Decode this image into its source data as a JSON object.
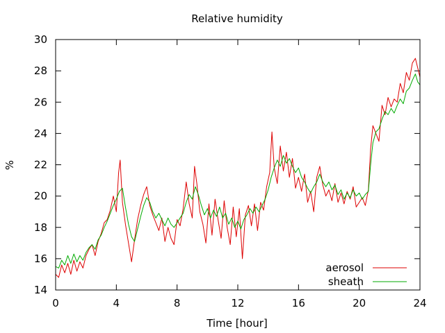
{
  "chart_data": {
    "type": "line",
    "title": "Relative humidity",
    "xlabel": "Time [hour]",
    "ylabel": "%",
    "xlim": [
      0,
      24
    ],
    "ylim": [
      14,
      30
    ],
    "x_ticks": [
      0,
      4,
      8,
      12,
      16,
      20,
      24
    ],
    "y_ticks": [
      14,
      16,
      18,
      20,
      22,
      24,
      26,
      28,
      30
    ],
    "grid": false,
    "legend_position": "bottom-right",
    "series": [
      {
        "name": "aerosol",
        "color": "#dd0000",
        "points": [
          [
            0.0,
            15.0
          ],
          [
            0.2,
            14.8
          ],
          [
            0.4,
            15.6
          ],
          [
            0.6,
            15.1
          ],
          [
            0.8,
            15.7
          ],
          [
            1.0,
            15.0
          ],
          [
            1.2,
            15.9
          ],
          [
            1.4,
            15.2
          ],
          [
            1.6,
            15.8
          ],
          [
            1.8,
            15.4
          ],
          [
            2.0,
            16.2
          ],
          [
            2.2,
            16.6
          ],
          [
            2.4,
            16.9
          ],
          [
            2.6,
            16.2
          ],
          [
            2.8,
            17.1
          ],
          [
            3.0,
            17.6
          ],
          [
            3.2,
            18.3
          ],
          [
            3.4,
            18.5
          ],
          [
            3.6,
            19.1
          ],
          [
            3.8,
            20.0
          ],
          [
            4.0,
            19.0
          ],
          [
            4.15,
            21.5
          ],
          [
            4.25,
            22.3
          ],
          [
            4.4,
            19.6
          ],
          [
            4.6,
            18.2
          ],
          [
            4.8,
            17.0
          ],
          [
            5.0,
            15.8
          ],
          [
            5.2,
            17.2
          ],
          [
            5.4,
            18.5
          ],
          [
            5.6,
            19.4
          ],
          [
            5.8,
            20.1
          ],
          [
            6.0,
            20.6
          ],
          [
            6.2,
            19.4
          ],
          [
            6.4,
            18.8
          ],
          [
            6.6,
            18.3
          ],
          [
            6.8,
            17.8
          ],
          [
            7.0,
            18.6
          ],
          [
            7.2,
            17.1
          ],
          [
            7.4,
            18.0
          ],
          [
            7.6,
            17.3
          ],
          [
            7.8,
            16.9
          ],
          [
            8.0,
            18.5
          ],
          [
            8.2,
            18.1
          ],
          [
            8.4,
            19.2
          ],
          [
            8.6,
            20.9
          ],
          [
            8.8,
            19.5
          ],
          [
            9.0,
            18.6
          ],
          [
            9.15,
            21.9
          ],
          [
            9.3,
            20.8
          ],
          [
            9.5,
            19.0
          ],
          [
            9.7,
            18.2
          ],
          [
            9.9,
            17.0
          ],
          [
            10.1,
            19.5
          ],
          [
            10.3,
            17.5
          ],
          [
            10.5,
            19.8
          ],
          [
            10.7,
            18.5
          ],
          [
            10.9,
            17.3
          ],
          [
            11.1,
            19.7
          ],
          [
            11.3,
            18.0
          ],
          [
            11.5,
            16.9
          ],
          [
            11.7,
            19.3
          ],
          [
            11.9,
            17.4
          ],
          [
            12.1,
            19.2
          ],
          [
            12.3,
            16.0
          ],
          [
            12.5,
            18.8
          ],
          [
            12.7,
            19.4
          ],
          [
            12.9,
            18.1
          ],
          [
            13.1,
            19.5
          ],
          [
            13.3,
            17.8
          ],
          [
            13.5,
            19.6
          ],
          [
            13.7,
            19.1
          ],
          [
            13.9,
            20.6
          ],
          [
            14.1,
            21.5
          ],
          [
            14.25,
            24.1
          ],
          [
            14.4,
            21.8
          ],
          [
            14.6,
            20.8
          ],
          [
            14.8,
            23.2
          ],
          [
            15.0,
            21.6
          ],
          [
            15.2,
            22.8
          ],
          [
            15.4,
            21.2
          ],
          [
            15.6,
            22.4
          ],
          [
            15.8,
            20.5
          ],
          [
            16.0,
            21.2
          ],
          [
            16.2,
            20.3
          ],
          [
            16.4,
            21.4
          ],
          [
            16.6,
            19.6
          ],
          [
            16.8,
            20.3
          ],
          [
            17.0,
            19.0
          ],
          [
            17.2,
            21.2
          ],
          [
            17.4,
            21.9
          ],
          [
            17.6,
            20.7
          ],
          [
            17.8,
            20.0
          ],
          [
            18.0,
            20.4
          ],
          [
            18.2,
            19.7
          ],
          [
            18.4,
            20.8
          ],
          [
            18.6,
            19.6
          ],
          [
            18.8,
            20.2
          ],
          [
            19.0,
            19.5
          ],
          [
            19.2,
            20.3
          ],
          [
            19.4,
            19.8
          ],
          [
            19.6,
            20.6
          ],
          [
            19.8,
            19.3
          ],
          [
            20.0,
            19.6
          ],
          [
            20.2,
            19.9
          ],
          [
            20.4,
            19.4
          ],
          [
            20.6,
            20.4
          ],
          [
            20.75,
            23.0
          ],
          [
            20.9,
            24.5
          ],
          [
            21.1,
            24.0
          ],
          [
            21.3,
            23.5
          ],
          [
            21.5,
            25.8
          ],
          [
            21.7,
            25.2
          ],
          [
            21.9,
            26.3
          ],
          [
            22.1,
            25.7
          ],
          [
            22.3,
            26.2
          ],
          [
            22.5,
            26.0
          ],
          [
            22.7,
            27.2
          ],
          [
            22.9,
            26.6
          ],
          [
            23.1,
            27.9
          ],
          [
            23.3,
            27.4
          ],
          [
            23.5,
            28.5
          ],
          [
            23.7,
            28.8
          ],
          [
            23.85,
            28.2
          ],
          [
            24.0,
            27.6
          ]
        ]
      },
      {
        "name": "sheath",
        "color": "#00aa00",
        "points": [
          [
            0.0,
            15.5
          ],
          [
            0.2,
            15.4
          ],
          [
            0.4,
            15.9
          ],
          [
            0.6,
            15.6
          ],
          [
            0.8,
            16.2
          ],
          [
            1.0,
            15.7
          ],
          [
            1.2,
            16.3
          ],
          [
            1.4,
            15.8
          ],
          [
            1.6,
            16.2
          ],
          [
            1.8,
            15.9
          ],
          [
            2.0,
            16.4
          ],
          [
            2.2,
            16.7
          ],
          [
            2.4,
            16.9
          ],
          [
            2.6,
            16.6
          ],
          [
            2.8,
            17.2
          ],
          [
            3.0,
            17.5
          ],
          [
            3.2,
            18.0
          ],
          [
            3.4,
            18.4
          ],
          [
            3.6,
            18.9
          ],
          [
            3.8,
            19.4
          ],
          [
            4.0,
            19.8
          ],
          [
            4.2,
            20.3
          ],
          [
            4.4,
            20.5
          ],
          [
            4.6,
            19.3
          ],
          [
            4.8,
            18.2
          ],
          [
            5.0,
            17.4
          ],
          [
            5.2,
            17.1
          ],
          [
            5.4,
            17.9
          ],
          [
            5.6,
            18.7
          ],
          [
            5.8,
            19.4
          ],
          [
            6.0,
            19.9
          ],
          [
            6.2,
            19.6
          ],
          [
            6.4,
            19.0
          ],
          [
            6.6,
            18.6
          ],
          [
            6.8,
            18.9
          ],
          [
            7.0,
            18.5
          ],
          [
            7.2,
            18.1
          ],
          [
            7.4,
            18.6
          ],
          [
            7.6,
            18.2
          ],
          [
            7.8,
            18.0
          ],
          [
            8.0,
            18.3
          ],
          [
            8.2,
            18.6
          ],
          [
            8.4,
            18.9
          ],
          [
            8.6,
            19.6
          ],
          [
            8.8,
            20.1
          ],
          [
            9.0,
            19.8
          ],
          [
            9.2,
            20.6
          ],
          [
            9.4,
            20.1
          ],
          [
            9.6,
            19.4
          ],
          [
            9.8,
            18.8
          ],
          [
            10.0,
            19.2
          ],
          [
            10.2,
            18.6
          ],
          [
            10.4,
            19.1
          ],
          [
            10.6,
            18.7
          ],
          [
            10.8,
            19.3
          ],
          [
            11.0,
            18.6
          ],
          [
            11.2,
            18.9
          ],
          [
            11.4,
            18.2
          ],
          [
            11.6,
            18.6
          ],
          [
            11.8,
            18.0
          ],
          [
            12.0,
            18.4
          ],
          [
            12.2,
            17.9
          ],
          [
            12.4,
            18.5
          ],
          [
            12.6,
            18.8
          ],
          [
            12.8,
            19.2
          ],
          [
            13.0,
            18.9
          ],
          [
            13.2,
            19.3
          ],
          [
            13.4,
            19.0
          ],
          [
            13.6,
            19.4
          ],
          [
            13.8,
            19.8
          ],
          [
            14.0,
            20.4
          ],
          [
            14.2,
            21.2
          ],
          [
            14.4,
            21.8
          ],
          [
            14.6,
            22.3
          ],
          [
            14.8,
            21.9
          ],
          [
            15.0,
            22.6
          ],
          [
            15.2,
            22.1
          ],
          [
            15.4,
            22.4
          ],
          [
            15.6,
            21.9
          ],
          [
            15.8,
            21.5
          ],
          [
            16.0,
            21.8
          ],
          [
            16.2,
            21.2
          ],
          [
            16.4,
            20.9
          ],
          [
            16.6,
            20.5
          ],
          [
            16.8,
            20.2
          ],
          [
            17.0,
            20.6
          ],
          [
            17.2,
            20.9
          ],
          [
            17.4,
            21.4
          ],
          [
            17.6,
            20.9
          ],
          [
            17.8,
            20.6
          ],
          [
            18.0,
            20.9
          ],
          [
            18.2,
            20.4
          ],
          [
            18.4,
            20.7
          ],
          [
            18.6,
            20.1
          ],
          [
            18.8,
            20.4
          ],
          [
            19.0,
            19.8
          ],
          [
            19.2,
            20.2
          ],
          [
            19.4,
            19.9
          ],
          [
            19.6,
            20.4
          ],
          [
            19.8,
            20.0
          ],
          [
            20.0,
            20.2
          ],
          [
            20.2,
            19.8
          ],
          [
            20.4,
            20.1
          ],
          [
            20.6,
            20.3
          ],
          [
            20.75,
            22.0
          ],
          [
            20.9,
            23.4
          ],
          [
            21.1,
            24.1
          ],
          [
            21.3,
            24.3
          ],
          [
            21.5,
            24.9
          ],
          [
            21.7,
            25.4
          ],
          [
            21.9,
            25.2
          ],
          [
            22.1,
            25.6
          ],
          [
            22.3,
            25.3
          ],
          [
            22.5,
            25.8
          ],
          [
            22.7,
            26.2
          ],
          [
            22.9,
            25.9
          ],
          [
            23.1,
            26.7
          ],
          [
            23.3,
            26.9
          ],
          [
            23.5,
            27.4
          ],
          [
            23.7,
            27.8
          ],
          [
            23.85,
            27.3
          ],
          [
            24.0,
            27.1
          ]
        ]
      }
    ]
  }
}
